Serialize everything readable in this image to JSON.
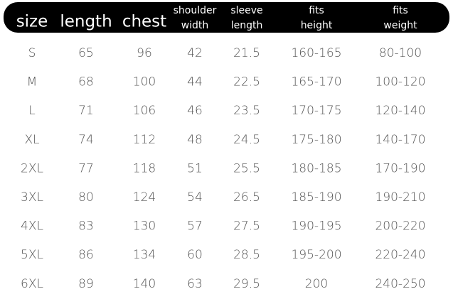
{
  "table": {
    "header": [
      [
        "size"
      ],
      [
        "length"
      ],
      [
        "chest"
      ],
      [
        "shoulder",
        "width"
      ],
      [
        "sleeve",
        "length"
      ],
      [
        "fits",
        "height"
      ],
      [
        "fits",
        "weight"
      ]
    ],
    "rows": [
      [
        "S",
        "65",
        "96",
        "42",
        "21.5",
        "160-165",
        "80-100"
      ],
      [
        "M",
        "68",
        "100",
        "44",
        "22.5",
        "165-170",
        "100-120"
      ],
      [
        "L",
        "71",
        "106",
        "46",
        "23.5",
        "170-175",
        "120-140"
      ],
      [
        "XL",
        "74",
        "112",
        "48",
        "24.5",
        "175-180",
        "140-170"
      ],
      [
        "2XL",
        "77",
        "118",
        "51",
        "25.5",
        "180-185",
        "170-190"
      ],
      [
        "3XL",
        "80",
        "124",
        "54",
        "26.5",
        "185-190",
        "190-210"
      ],
      [
        "4XL",
        "83",
        "130",
        "57",
        "27.5",
        "190-195",
        "200-220"
      ],
      [
        "5XL",
        "86",
        "134",
        "60",
        "28.5",
        "195-200",
        "220-240"
      ],
      [
        "6XL",
        "89",
        "140",
        "63",
        "29.5",
        "200",
        "240-250"
      ]
    ]
  }
}
